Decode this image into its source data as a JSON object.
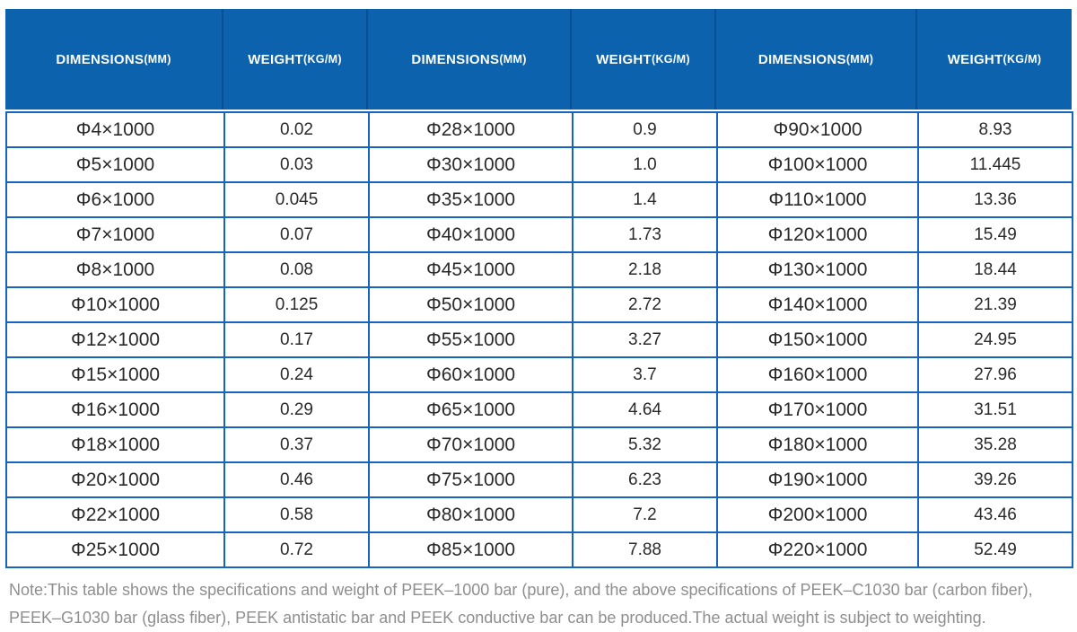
{
  "table": {
    "headers": [
      {
        "label": "DIMENSIONS",
        "unit": "(MM)"
      },
      {
        "label": "WEIGHT",
        "unit": "(KG/M)"
      },
      {
        "label": "DIMENSIONS",
        "unit": "(MM)"
      },
      {
        "label": "WEIGHT",
        "unit": "(KG/M)"
      },
      {
        "label": "DIMENSIONS",
        "unit": "(MM)"
      },
      {
        "label": "WEIGHT",
        "unit": "(KG/M)"
      }
    ],
    "rows": [
      [
        "Φ4×1000",
        "0.02",
        "Φ28×1000",
        "0.9",
        "Φ90×1000",
        "8.93"
      ],
      [
        "Φ5×1000",
        "0.03",
        "Φ30×1000",
        "1.0",
        "Φ100×1000",
        "11.445"
      ],
      [
        "Φ6×1000",
        "0.045",
        "Φ35×1000",
        "1.4",
        "Φ110×1000",
        "13.36"
      ],
      [
        "Φ7×1000",
        "0.07",
        "Φ40×1000",
        "1.73",
        "Φ120×1000",
        "15.49"
      ],
      [
        "Φ8×1000",
        "0.08",
        "Φ45×1000",
        "2.18",
        "Φ130×1000",
        "18.44"
      ],
      [
        "Φ10×1000",
        "0.125",
        "Φ50×1000",
        "2.72",
        "Φ140×1000",
        "21.39"
      ],
      [
        "Φ12×1000",
        "0.17",
        "Φ55×1000",
        "3.27",
        "Φ150×1000",
        "24.95"
      ],
      [
        "Φ15×1000",
        "0.24",
        "Φ60×1000",
        "3.7",
        "Φ160×1000",
        "27.96"
      ],
      [
        "Φ16×1000",
        "0.29",
        "Φ65×1000",
        "4.64",
        "Φ170×1000",
        "31.51"
      ],
      [
        "Φ18×1000",
        "0.37",
        "Φ70×1000",
        "5.32",
        "Φ180×1000",
        "35.28"
      ],
      [
        "Φ20×1000",
        "0.46",
        "Φ75×1000",
        "6.23",
        "Φ190×1000",
        "39.26"
      ],
      [
        "Φ22×1000",
        "0.58",
        "Φ80×1000",
        "7.2",
        "Φ200×1000",
        "43.46"
      ],
      [
        "Φ25×1000",
        "0.72",
        "Φ85×1000",
        "7.88",
        "Φ220×1000",
        "52.49"
      ]
    ]
  },
  "note": {
    "line1": "Note:This table shows the specifications and weight of PEEK–1000 bar (pure), and the above specifications of PEEK–C1030 bar (carbon fiber),",
    "line2": "PEEK–G1030 bar (glass fiber), PEEK antistatic bar and PEEK conductive bar can be produced.The actual weight is subject to weighting."
  },
  "colors": {
    "header_bg": "#0c62ac",
    "header_separator": "#0a4f94",
    "header_text": "#ffffff",
    "grid_border": "#1565c0",
    "cell_text": "#2a2a2a",
    "note_text": "#8e8e8e"
  }
}
